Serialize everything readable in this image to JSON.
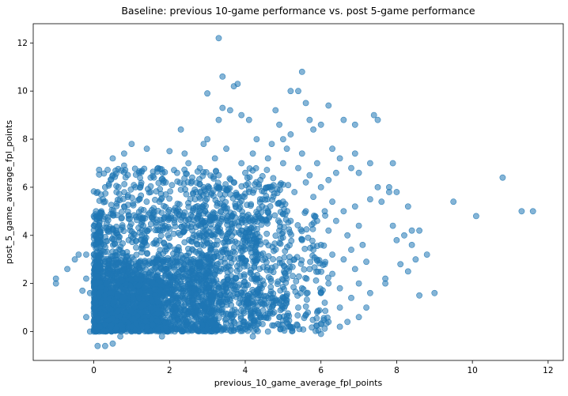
{
  "chart_data": {
    "type": "scatter",
    "title": "Baseline: previous 10-game performance vs. post 5-game performance",
    "xlabel": "previous_10_game_average_fpl_points",
    "ylabel": "post_5_game_average_fpl_points",
    "xlim": [
      -1.6,
      12.4
    ],
    "ylim": [
      -1.2,
      12.8
    ],
    "xticks": [
      0,
      2,
      4,
      6,
      8,
      10,
      12
    ],
    "yticks": [
      0,
      2,
      4,
      6,
      8,
      10,
      12
    ],
    "grid": false,
    "point_color": "#1f77b4",
    "point_alpha": 0.55,
    "series": [
      {
        "points": [
          [
            3.3,
            12.2
          ],
          [
            3.4,
            10.6
          ],
          [
            5.5,
            10.8
          ],
          [
            3.7,
            10.2
          ],
          [
            3.8,
            10.3
          ],
          [
            3.0,
            9.9
          ],
          [
            5.2,
            10.0
          ],
          [
            5.4,
            10.0
          ],
          [
            3.6,
            9.2
          ],
          [
            3.4,
            9.3
          ],
          [
            3.3,
            8.8
          ],
          [
            3.9,
            9.0
          ],
          [
            4.1,
            8.8
          ],
          [
            4.8,
            9.2
          ],
          [
            5.6,
            9.5
          ],
          [
            6.2,
            9.4
          ],
          [
            7.4,
            9.0
          ],
          [
            7.5,
            8.8
          ],
          [
            6.6,
            8.8
          ],
          [
            2.3,
            8.4
          ],
          [
            4.9,
            8.6
          ],
          [
            5.7,
            8.8
          ],
          [
            6.0,
            8.6
          ],
          [
            6.9,
            8.6
          ],
          [
            5.2,
            8.2
          ],
          [
            5.0,
            8.0
          ],
          [
            5.8,
            8.4
          ],
          [
            3.0,
            8.0
          ],
          [
            2.9,
            7.8
          ],
          [
            1.0,
            7.8
          ],
          [
            1.4,
            7.6
          ],
          [
            0.8,
            7.4
          ],
          [
            0.5,
            7.2
          ],
          [
            2.0,
            7.5
          ],
          [
            2.4,
            7.4
          ],
          [
            6.3,
            7.6
          ],
          [
            6.5,
            7.2
          ],
          [
            6.9,
            7.4
          ],
          [
            7.9,
            7.0
          ],
          [
            7.3,
            7.0
          ],
          [
            0.8,
            6.9
          ],
          [
            1.2,
            6.6
          ],
          [
            0.3,
            6.0
          ],
          [
            0.1,
            5.8
          ],
          [
            0.5,
            6.5
          ],
          [
            1.7,
            6.8
          ],
          [
            2.5,
            7.0
          ],
          [
            6.8,
            6.8
          ],
          [
            7.0,
            6.6
          ],
          [
            7.5,
            6.0
          ],
          [
            7.8,
            5.8
          ],
          [
            7.3,
            5.5
          ],
          [
            7.8,
            6.0
          ],
          [
            8.0,
            5.8
          ],
          [
            7.6,
            5.4
          ],
          [
            8.3,
            5.2
          ],
          [
            8.6,
            4.2
          ],
          [
            8.4,
            4.2
          ],
          [
            8.2,
            4.0
          ],
          [
            7.9,
            4.4
          ],
          [
            8.0,
            3.8
          ],
          [
            8.4,
            3.6
          ],
          [
            8.5,
            3.0
          ],
          [
            8.8,
            3.2
          ],
          [
            8.1,
            2.8
          ],
          [
            8.3,
            2.5
          ],
          [
            7.7,
            2.0
          ],
          [
            7.7,
            2.2
          ],
          [
            7.3,
            1.6
          ],
          [
            8.6,
            1.5
          ],
          [
            9.0,
            1.6
          ],
          [
            9.5,
            5.4
          ],
          [
            10.1,
            4.8
          ],
          [
            10.8,
            6.4
          ],
          [
            11.3,
            5.0
          ],
          [
            11.6,
            5.0
          ],
          [
            -1.0,
            2.2
          ],
          [
            -1.0,
            2.0
          ],
          [
            -0.7,
            2.6
          ],
          [
            -0.5,
            3.0
          ],
          [
            -0.4,
            3.2
          ],
          [
            -0.2,
            3.2
          ],
          [
            -0.2,
            2.2
          ],
          [
            -0.3,
            1.7
          ],
          [
            -0.1,
            1.6
          ],
          [
            -0.2,
            0.6
          ],
          [
            -0.1,
            0.0
          ],
          [
            0.1,
            -0.6
          ],
          [
            0.3,
            -0.6
          ],
          [
            0.5,
            -0.5
          ],
          [
            0.7,
            -0.2
          ],
          [
            1.8,
            -0.2
          ],
          [
            6.0,
            -0.1
          ],
          [
            6.2,
            0.4
          ],
          [
            6.5,
            0.2
          ],
          [
            6.7,
            0.4
          ],
          [
            7.0,
            0.6
          ],
          [
            7.2,
            1.0
          ],
          [
            6.8,
            1.4
          ],
          [
            6.5,
            1.8
          ],
          [
            7.0,
            2.0
          ],
          [
            6.3,
            2.4
          ],
          [
            6.9,
            2.6
          ],
          [
            7.2,
            2.9
          ],
          [
            6.6,
            3.0
          ],
          [
            6.8,
            3.4
          ],
          [
            7.1,
            3.6
          ],
          [
            6.7,
            4.0
          ],
          [
            7.0,
            4.4
          ],
          [
            6.4,
            4.6
          ],
          [
            6.6,
            5.0
          ],
          [
            6.3,
            5.4
          ],
          [
            6.9,
            5.2
          ],
          [
            6.0,
            6.0
          ],
          [
            6.2,
            6.3
          ],
          [
            6.4,
            6.6
          ],
          [
            5.9,
            7.0
          ],
          [
            5.5,
            7.4
          ],
          [
            5.1,
            7.6
          ],
          [
            4.7,
            7.8
          ],
          [
            4.3,
            8.0
          ],
          [
            5.7,
            6.5
          ],
          [
            5.4,
            6.8
          ],
          [
            5.0,
            7.0
          ],
          [
            4.6,
            7.2
          ],
          [
            4.2,
            7.4
          ],
          [
            3.9,
            7.0
          ],
          [
            3.5,
            7.6
          ],
          [
            3.2,
            7.2
          ],
          [
            2.8,
            6.8
          ],
          [
            2.6,
            6.4
          ],
          [
            2.2,
            6.6
          ],
          [
            1.9,
            6.2
          ],
          [
            1.5,
            6.4
          ],
          [
            1.1,
            6.0
          ],
          [
            0.9,
            5.6
          ],
          [
            0.6,
            5.8
          ],
          [
            0.3,
            5.4
          ],
          [
            0.2,
            5.0
          ],
          [
            0.0,
            4.8
          ],
          [
            0.0,
            4.4
          ],
          [
            0.0,
            4.0
          ],
          [
            0.0,
            3.6
          ],
          [
            0.0,
            3.2
          ],
          [
            0.0,
            2.8
          ],
          [
            0.0,
            2.4
          ],
          [
            0.0,
            2.0
          ],
          [
            0.0,
            1.6
          ],
          [
            0.0,
            1.2
          ],
          [
            0.0,
            0.8
          ],
          [
            0.0,
            0.4
          ],
          [
            0.0,
            0.0
          ],
          [
            5.3,
            5.8
          ],
          [
            5.0,
            5.4
          ],
          [
            4.7,
            5.9
          ],
          [
            4.4,
            6.3
          ],
          [
            4.0,
            6.6
          ],
          [
            3.7,
            6.2
          ],
          [
            3.3,
            6.5
          ],
          [
            2.9,
            6.0
          ],
          [
            5.6,
            5.0
          ],
          [
            5.2,
            4.6
          ],
          [
            4.9,
            4.2
          ],
          [
            5.5,
            3.8
          ],
          [
            5.8,
            3.4
          ],
          [
            5.3,
            3.0
          ],
          [
            5.7,
            2.6
          ],
          [
            5.1,
            2.2
          ],
          [
            5.5,
            1.8
          ],
          [
            5.0,
            1.4
          ],
          [
            5.4,
            1.0
          ],
          [
            4.9,
            0.6
          ],
          [
            5.2,
            0.2
          ],
          [
            4.6,
            0.0
          ],
          [
            4.2,
            -0.2
          ],
          [
            3.8,
            0.1
          ],
          [
            6.1,
            1.2
          ],
          [
            5.9,
            0.8
          ],
          [
            6.0,
            1.6
          ],
          [
            6.2,
            2.0
          ],
          [
            6.1,
            2.8
          ],
          [
            6.3,
            3.2
          ],
          [
            6.0,
            3.6
          ],
          [
            6.2,
            4.2
          ],
          [
            5.9,
            4.6
          ],
          [
            6.1,
            5.0
          ],
          [
            5.8,
            5.6
          ],
          [
            5.6,
            6.2
          ],
          [
            4.1,
            5.8
          ],
          [
            3.8,
            5.6
          ],
          [
            3.5,
            5.9
          ],
          [
            3.1,
            5.7
          ],
          [
            2.7,
            5.8
          ],
          [
            2.3,
            5.9
          ],
          [
            1.9,
            5.7
          ],
          [
            1.5,
            5.8
          ],
          [
            1.2,
            5.5
          ],
          [
            0.8,
            5.2
          ],
          [
            0.5,
            4.9
          ],
          [
            6.5,
            1.0
          ]
        ]
      }
    ],
    "dense_regions": [
      {
        "x": [
          0,
          4.4
        ],
        "y": [
          0,
          5.0
        ],
        "n": 1100
      },
      {
        "x": [
          0,
          3.2
        ],
        "y": [
          0,
          3.0
        ],
        "n": 900
      },
      {
        "x": [
          0,
          1.8
        ],
        "y": [
          0,
          2.2
        ],
        "n": 700
      },
      {
        "x": [
          2.6,
          5.2
        ],
        "y": [
          0,
          6.2
        ],
        "n": 350
      },
      {
        "x": [
          0,
          5.0
        ],
        "y": [
          4.6,
          6.8
        ],
        "n": 260
      },
      {
        "x": [
          4.2,
          6.2
        ],
        "y": [
          0,
          5.0
        ],
        "n": 180
      },
      {
        "x": [
          0,
          0.2
        ],
        "y": [
          0,
          5.0
        ],
        "n": 200
      }
    ]
  }
}
